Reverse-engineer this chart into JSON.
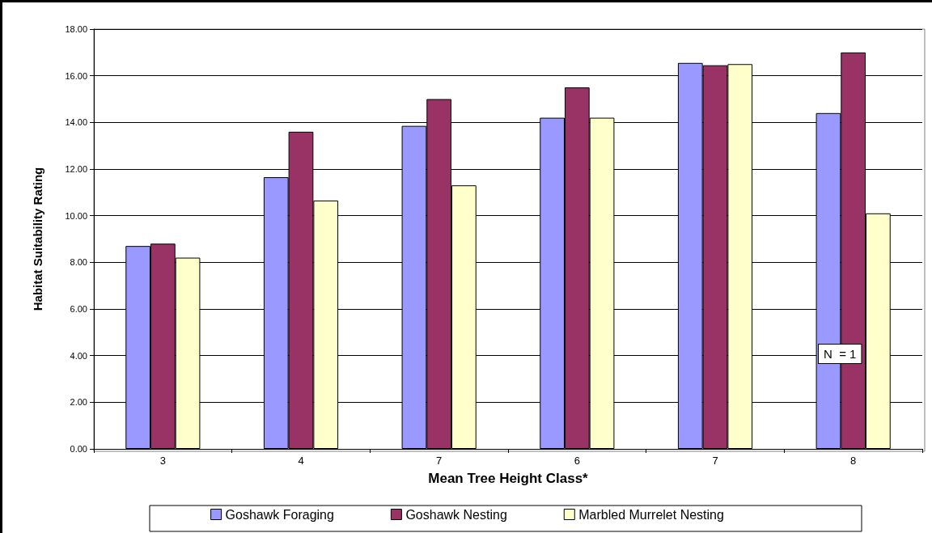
{
  "chart_data": {
    "type": "bar",
    "xlabel": "Mean Tree Height Class*",
    "ylabel": "Habitat Suitability Rating",
    "categories": [
      "3",
      "4",
      "7",
      "6",
      "7",
      "8"
    ],
    "series": [
      {
        "name": "Goshawk Foraging",
        "color": "#9999ff",
        "values": [
          8.7,
          11.65,
          13.85,
          14.2,
          16.55,
          14.4
        ]
      },
      {
        "name": "Goshawk Nesting",
        "color": "#993366",
        "values": [
          8.8,
          13.6,
          15.0,
          15.5,
          16.45,
          17.0
        ]
      },
      {
        "name": "Marbled Murrelet Nesting",
        "color": "#ffffcc",
        "values": [
          8.2,
          10.65,
          11.3,
          14.2,
          16.5,
          10.1
        ]
      }
    ],
    "ylim": [
      0,
      18
    ],
    "yticks": [
      {
        "value": 0,
        "label": "0.00"
      },
      {
        "value": 2,
        "label": "2.00"
      },
      {
        "value": 4,
        "label": "4.00"
      },
      {
        "value": 6,
        "label": "6.00"
      },
      {
        "value": 8,
        "label": "8.00"
      },
      {
        "value": 10,
        "label": "10.00"
      },
      {
        "value": 12,
        "label": "12.00"
      },
      {
        "value": 14,
        "label": "14.00"
      },
      {
        "value": 16,
        "label": "16.00"
      },
      {
        "value": 18,
        "label": "18.00"
      }
    ],
    "grid": "y",
    "legend": "bottom",
    "annotations": [
      "N  = 1"
    ]
  }
}
